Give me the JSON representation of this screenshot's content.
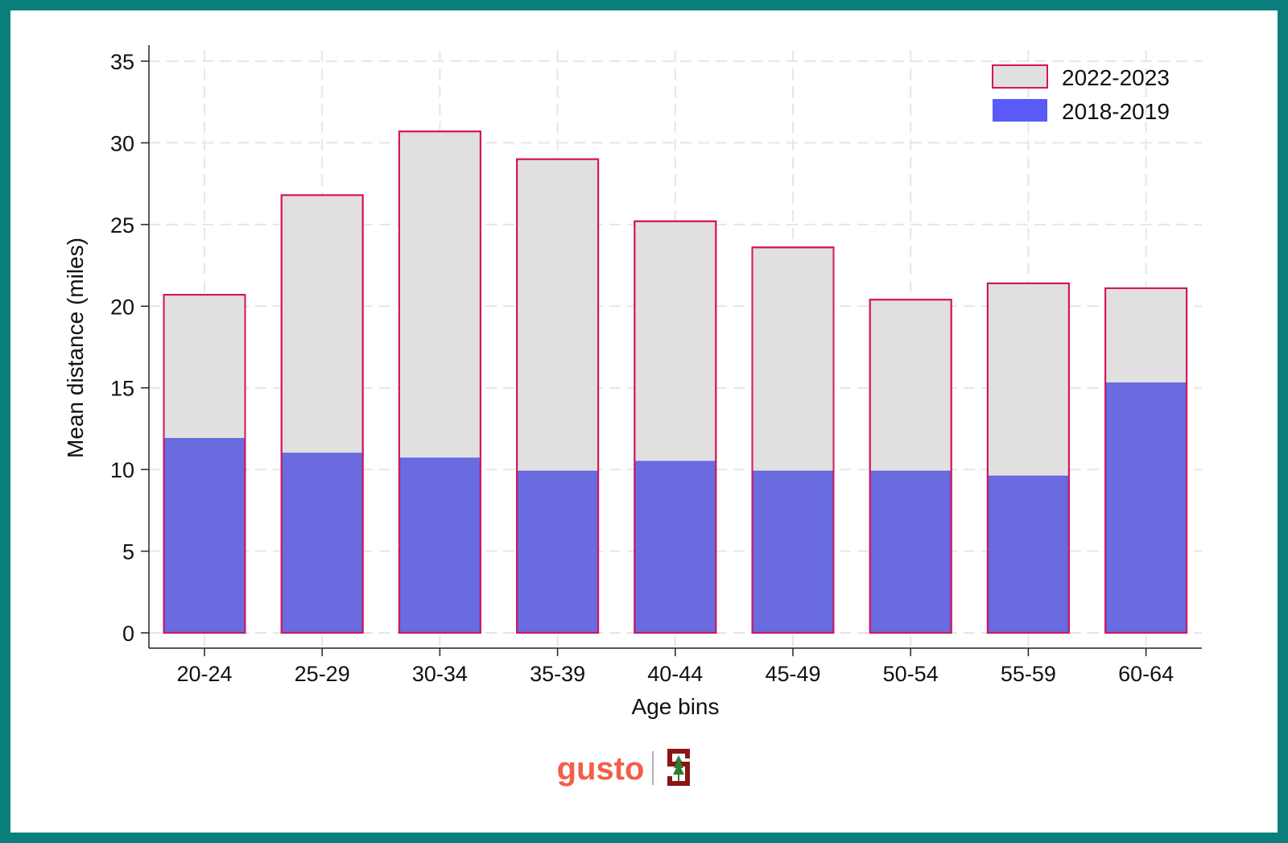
{
  "chart_data": {
    "type": "bar",
    "title": "",
    "xlabel": "Age bins",
    "ylabel": "Mean distance (miles)",
    "categories": [
      "20-24",
      "25-29",
      "30-34",
      "35-39",
      "40-44",
      "45-49",
      "50-54",
      "55-59",
      "60-64"
    ],
    "series": [
      {
        "name": "2022-2023",
        "values": [
          20.7,
          26.8,
          30.7,
          29.0,
          25.2,
          23.6,
          20.4,
          21.4,
          21.1
        ],
        "color": "#e0e0e0",
        "stroke": "#d4145a"
      },
      {
        "name": "2018-2019",
        "values": [
          11.9,
          11.0,
          10.7,
          9.9,
          10.5,
          9.9,
          9.9,
          9.6,
          15.3
        ],
        "color": "#6b6be0"
      }
    ],
    "ylim": [
      0,
      35
    ],
    "yticks": [
      0,
      5,
      10,
      15,
      20,
      25,
      30,
      35
    ],
    "grid": true,
    "legend_position": "top-right",
    "overlay": true
  },
  "logos": {
    "gusto": "gusto",
    "gusto_color": "#f45d48",
    "stanford_color": "#8c1515",
    "stanford_icon": "stanford-s-tree-icon"
  }
}
